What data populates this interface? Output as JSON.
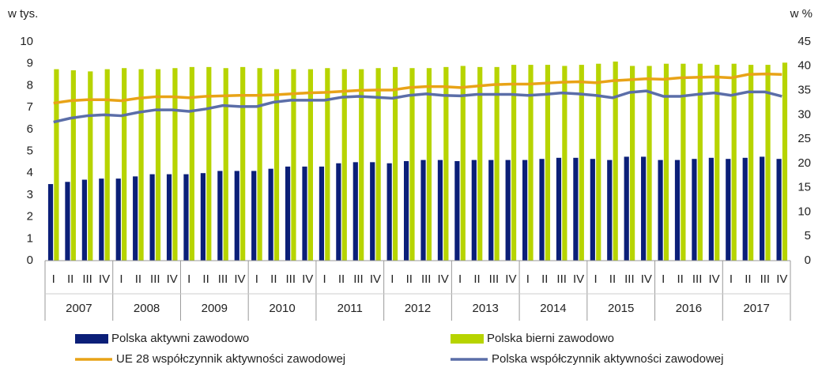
{
  "chart_data": {
    "type": "bar",
    "y_label": "w tys.",
    "y2_label": "w %",
    "categories": [
      "I",
      "II",
      "III",
      "IV",
      "I",
      "II",
      "III",
      "IV",
      "I",
      "II",
      "III",
      "IV",
      "I",
      "II",
      "III",
      "IV",
      "I",
      "II",
      "III",
      "IV",
      "I",
      "II",
      "III",
      "IV",
      "I",
      "II",
      "III",
      "IV",
      "I",
      "II",
      "III",
      "IV",
      "I",
      "II",
      "III",
      "IV",
      "I",
      "II",
      "III",
      "IV",
      "I",
      "II",
      "III",
      "IV"
    ],
    "years": [
      "2007",
      "2008",
      "2009",
      "2010",
      "2011",
      "2012",
      "2013",
      "2014",
      "2015",
      "2016",
      "2017"
    ],
    "series": [
      {
        "name": "Polska aktywni zawodowo",
        "kind": "bar",
        "color": "#0b1f78",
        "values": [
          3.5,
          3.6,
          3.7,
          3.75,
          3.75,
          3.85,
          3.95,
          3.95,
          3.95,
          4.0,
          4.1,
          4.1,
          4.1,
          4.2,
          4.3,
          4.3,
          4.3,
          4.45,
          4.5,
          4.5,
          4.45,
          4.55,
          4.6,
          4.6,
          4.55,
          4.6,
          4.6,
          4.6,
          4.6,
          4.65,
          4.7,
          4.7,
          4.65,
          4.6,
          4.75,
          4.75,
          4.6,
          4.6,
          4.65,
          4.7,
          4.65,
          4.7,
          4.75,
          4.65
        ]
      },
      {
        "name": "Polska bierni zawodowo",
        "kind": "bar",
        "color": "#b7d400",
        "values": [
          8.75,
          8.7,
          8.65,
          8.75,
          8.8,
          8.75,
          8.75,
          8.8,
          8.85,
          8.85,
          8.8,
          8.85,
          8.8,
          8.75,
          8.75,
          8.75,
          8.8,
          8.75,
          8.75,
          8.8,
          8.85,
          8.8,
          8.8,
          8.85,
          8.9,
          8.85,
          8.85,
          8.95,
          8.95,
          8.95,
          8.9,
          8.95,
          9.0,
          9.1,
          8.9,
          8.9,
          9.0,
          9.0,
          9.0,
          8.95,
          9.0,
          8.95,
          8.95,
          9.05
        ]
      },
      {
        "name": "UE 28 współczynnik aktywności zawodowej",
        "kind": "line",
        "axis": "y2",
        "color": "#e8a317",
        "values": [
          32.4,
          32.9,
          33.1,
          33.1,
          32.9,
          33.4,
          33.7,
          33.7,
          33.5,
          33.8,
          33.9,
          34.0,
          34.0,
          34.1,
          34.3,
          34.5,
          34.6,
          34.8,
          35.0,
          35.1,
          35.1,
          35.6,
          35.8,
          35.8,
          35.6,
          35.9,
          36.2,
          36.3,
          36.3,
          36.5,
          36.7,
          36.8,
          36.6,
          37.0,
          37.2,
          37.4,
          37.3,
          37.6,
          37.7,
          37.8,
          37.6,
          38.3,
          38.4,
          38.3
        ]
      },
      {
        "name": "Polska współczynnik aktywności zawodowej",
        "kind": "line",
        "axis": "y2",
        "color": "#5b6ea8",
        "values": [
          28.5,
          29.3,
          29.8,
          30.0,
          29.8,
          30.5,
          31.0,
          31.0,
          30.7,
          31.2,
          31.9,
          31.7,
          31.7,
          32.6,
          33.0,
          33.0,
          33.0,
          33.6,
          33.8,
          33.6,
          33.4,
          34.0,
          34.3,
          34.0,
          33.9,
          34.2,
          34.2,
          34.2,
          34.0,
          34.2,
          34.5,
          34.3,
          34.0,
          33.5,
          34.6,
          34.9,
          33.8,
          33.8,
          34.2,
          34.5,
          34.0,
          34.7,
          34.7,
          33.8
        ]
      }
    ],
    "ylim": [
      0,
      10
    ],
    "yticks": [
      0,
      1,
      2,
      3,
      4,
      5,
      6,
      7,
      8,
      9,
      10
    ],
    "y2lim": [
      0,
      45
    ],
    "y2ticks": [
      0,
      5,
      10,
      15,
      20,
      25,
      30,
      35,
      40,
      45
    ]
  }
}
